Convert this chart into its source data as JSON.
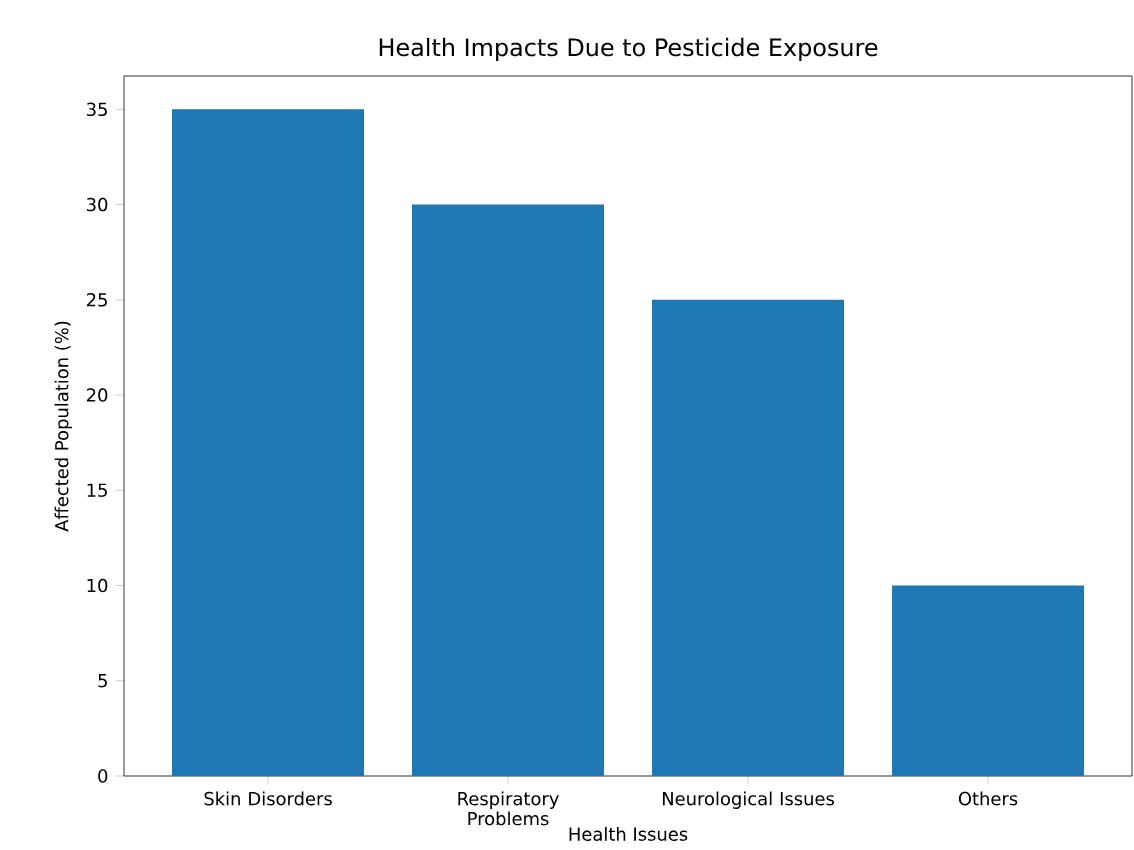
{
  "chart_data": {
    "type": "bar",
    "title": "Health Impacts Due to Pesticide Exposure",
    "xlabel": "Health Issues",
    "ylabel": "Affected Population (%)",
    "categories": [
      "Skin Disorders",
      "Respiratory Problems",
      "Neurological Issues",
      "Others"
    ],
    "values": [
      35,
      30,
      25,
      10
    ],
    "color": "#1f77b4",
    "ylim": [
      0,
      36.75
    ],
    "yticks": [
      0,
      5,
      10,
      15,
      20,
      25,
      30,
      35
    ],
    "grid": false
  }
}
